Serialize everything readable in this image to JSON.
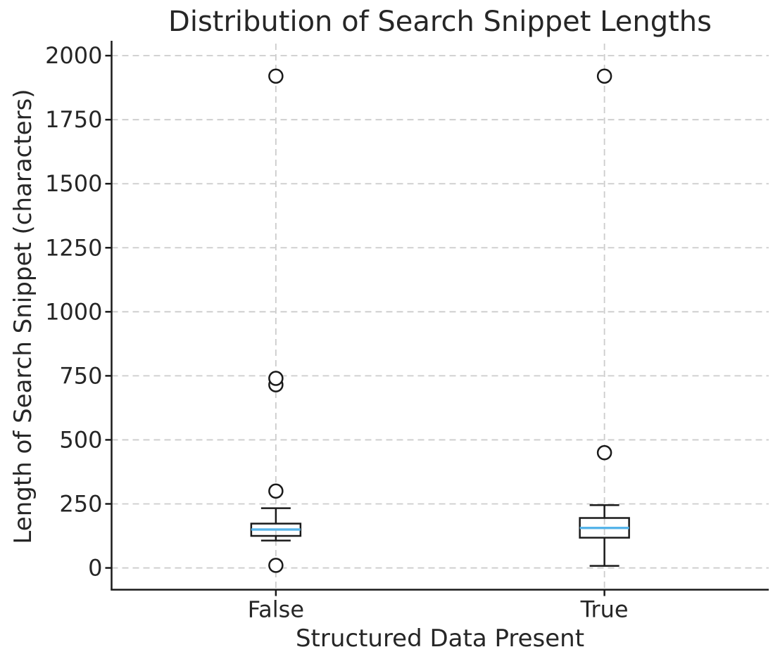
{
  "chart_data": {
    "type": "boxplot",
    "title": "Distribution of Search Snippet Lengths",
    "xlabel": "Structured Data Present",
    "ylabel": "Length of Search Snippet (characters)",
    "categories": [
      "False",
      "True"
    ],
    "yticks": [
      0,
      250,
      500,
      750,
      1000,
      1250,
      1500,
      1750,
      2000
    ],
    "ylim": [
      -85,
      2047
    ],
    "grid": true,
    "legend_position": "none",
    "series": [
      {
        "category": "False",
        "whisker_low": 107,
        "q1": 125,
        "median": 150,
        "q3": 173,
        "whisker_high": 233,
        "outliers": [
          10,
          300,
          715,
          740,
          1920
        ]
      },
      {
        "category": "True",
        "whisker_low": 8,
        "q1": 118,
        "median": 156,
        "q3": 195,
        "whisker_high": 245,
        "outliers": [
          450,
          1920
        ]
      }
    ],
    "colors": {
      "median": "#56b4e9",
      "box": "#1a1a1a",
      "grid": "#cccccc",
      "spine": "#1a1a1a",
      "text": "#262626",
      "background": "#ffffff"
    }
  }
}
